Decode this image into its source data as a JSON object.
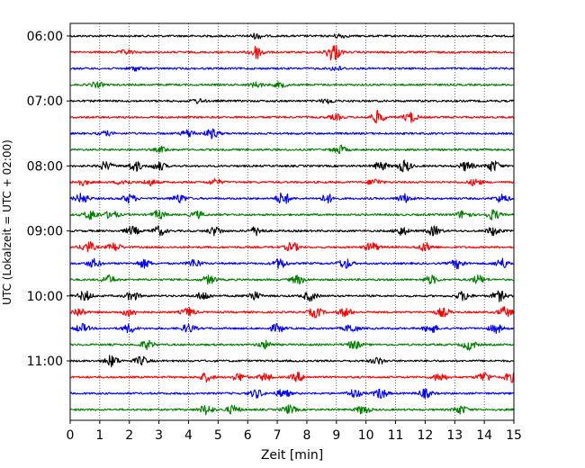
{
  "chart_data": {
    "type": "line",
    "title": "",
    "xlabel": "Zeit  [min]",
    "ylabel": "UTC (Lokalzeit = UTC + 02:00)",
    "xlim": [
      0,
      15
    ],
    "x_ticks": [
      "0",
      "1",
      "2",
      "3",
      "4",
      "5",
      "6",
      "7",
      "8",
      "9",
      "10",
      "11",
      "12",
      "13",
      "14",
      "15"
    ],
    "y_ticks": [
      "06:00",
      "07:00",
      "08:00",
      "09:00",
      "10:00",
      "11:00"
    ],
    "grid": "vertical dotted at each minute",
    "trace_interval_min": 15,
    "first_trace": "06:00",
    "color_cycle": [
      "#000000",
      "#ff0000",
      "#0000ff",
      "#008000"
    ],
    "series": [
      {
        "start": "06:00",
        "color": "#000000",
        "bursts": [
          [
            6.3,
            0.6
          ],
          [
            9.1,
            0.5
          ]
        ]
      },
      {
        "start": "06:15",
        "color": "#ff0000",
        "bursts": [
          [
            6.3,
            1.6
          ],
          [
            8.9,
            2.2
          ],
          [
            1.9,
            0.5
          ]
        ]
      },
      {
        "start": "06:30",
        "color": "#0000ff",
        "bursts": [
          [
            2.2,
            0.5
          ],
          [
            9.0,
            0.5
          ]
        ]
      },
      {
        "start": "06:45",
        "color": "#008000",
        "bursts": [
          [
            0.9,
            0.6
          ],
          [
            6.3,
            0.6
          ],
          [
            7.1,
            0.6
          ]
        ]
      },
      {
        "start": "07:00",
        "color": "#000000",
        "bursts": [
          [
            4.3,
            0.5
          ],
          [
            8.7,
            0.5
          ]
        ]
      },
      {
        "start": "07:15",
        "color": "#ff0000",
        "bursts": [
          [
            9.0,
            0.6
          ],
          [
            10.4,
            1.5
          ],
          [
            11.5,
            1.2
          ]
        ]
      },
      {
        "start": "07:30",
        "color": "#0000ff",
        "bursts": [
          [
            4.0,
            0.9
          ],
          [
            4.8,
            1.1
          ],
          [
            1.2,
            0.5
          ]
        ]
      },
      {
        "start": "07:45",
        "color": "#008000",
        "bursts": [
          [
            9.1,
            1.0
          ],
          [
            3.1,
            0.6
          ]
        ]
      },
      {
        "start": "08:00",
        "color": "#000000",
        "bursts": [
          [
            1.2,
            1.0
          ],
          [
            2.2,
            1.2
          ],
          [
            3.0,
            1.0
          ],
          [
            10.5,
            1.0
          ],
          [
            11.3,
            1.4
          ],
          [
            13.4,
            1.1
          ],
          [
            14.3,
            1.3
          ]
        ]
      },
      {
        "start": "08:15",
        "color": "#ff0000",
        "bursts": [
          [
            0.4,
            0.7
          ],
          [
            1.8,
            0.7
          ],
          [
            2.7,
            0.7
          ],
          [
            4.9,
            0.7
          ],
          [
            10.3,
            0.8
          ],
          [
            13.7,
            0.8
          ]
        ]
      },
      {
        "start": "08:30",
        "color": "#0000ff",
        "bursts": [
          [
            0.4,
            1.2
          ],
          [
            2.0,
            1.0
          ],
          [
            3.7,
            1.0
          ],
          [
            7.2,
            1.5
          ],
          [
            8.7,
            1.0
          ],
          [
            11.3,
            1.0
          ],
          [
            14.6,
            1.0
          ]
        ]
      },
      {
        "start": "08:45",
        "color": "#008000",
        "bursts": [
          [
            0.7,
            1.2
          ],
          [
            1.4,
            1.0
          ],
          [
            3.0,
            1.0
          ],
          [
            4.3,
            0.8
          ],
          [
            13.3,
            1.0
          ],
          [
            14.3,
            1.2
          ]
        ]
      },
      {
        "start": "09:00",
        "color": "#000000",
        "bursts": [
          [
            2.1,
            1.0
          ],
          [
            3.0,
            1.1
          ],
          [
            4.9,
            1.0
          ],
          [
            6.3,
            1.0
          ],
          [
            11.2,
            1.0
          ],
          [
            12.3,
            1.1
          ],
          [
            14.3,
            1.0
          ]
        ]
      },
      {
        "start": "09:15",
        "color": "#ff0000",
        "bursts": [
          [
            0.6,
            1.3
          ],
          [
            1.5,
            1.0
          ],
          [
            7.5,
            1.1
          ],
          [
            10.2,
            1.1
          ],
          [
            12.0,
            1.0
          ]
        ]
      },
      {
        "start": "09:30",
        "color": "#0000ff",
        "bursts": [
          [
            0.8,
            1.0
          ],
          [
            2.5,
            1.0
          ],
          [
            4.2,
            1.0
          ],
          [
            7.1,
            1.2
          ],
          [
            9.3,
            1.2
          ],
          [
            13.1,
            1.1
          ],
          [
            14.6,
            1.2
          ]
        ]
      },
      {
        "start": "09:45",
        "color": "#008000",
        "bursts": [
          [
            1.3,
            1.0
          ],
          [
            4.7,
            1.0
          ],
          [
            7.7,
            1.0
          ],
          [
            12.2,
            1.0
          ],
          [
            13.8,
            1.0
          ]
        ]
      },
      {
        "start": "10:00",
        "color": "#000000",
        "bursts": [
          [
            0.5,
            1.2
          ],
          [
            2.1,
            1.0
          ],
          [
            4.5,
            1.0
          ],
          [
            6.2,
            1.0
          ],
          [
            8.1,
            1.1
          ],
          [
            13.3,
            1.1
          ],
          [
            14.5,
            1.2
          ]
        ]
      },
      {
        "start": "10:15",
        "color": "#ff0000",
        "bursts": [
          [
            0.3,
            1.0
          ],
          [
            2.0,
            1.0
          ],
          [
            4.0,
            1.0
          ],
          [
            8.3,
            1.2
          ],
          [
            9.3,
            1.0
          ],
          [
            12.6,
            1.0
          ],
          [
            14.7,
            1.2
          ]
        ]
      },
      {
        "start": "10:30",
        "color": "#0000ff",
        "bursts": [
          [
            0.4,
            1.0
          ],
          [
            2.0,
            1.0
          ],
          [
            4.0,
            1.0
          ],
          [
            7.0,
            1.0
          ],
          [
            9.5,
            1.0
          ],
          [
            12.2,
            1.0
          ],
          [
            14.4,
            1.0
          ]
        ]
      },
      {
        "start": "10:45",
        "color": "#008000",
        "bursts": [
          [
            2.6,
            1.0
          ],
          [
            6.6,
            0.9
          ],
          [
            9.6,
            1.0
          ],
          [
            13.5,
            1.2
          ]
        ]
      },
      {
        "start": "11:00",
        "color": "#000000",
        "bursts": [
          [
            1.4,
            1.3
          ],
          [
            2.4,
            1.0
          ],
          [
            10.4,
            0.8
          ]
        ]
      },
      {
        "start": "11:15",
        "color": "#ff0000",
        "bursts": [
          [
            4.6,
            1.0
          ],
          [
            5.7,
            0.9
          ],
          [
            6.6,
            0.9
          ],
          [
            7.7,
            1.0
          ],
          [
            12.5,
            1.0
          ],
          [
            14.0,
            1.2
          ],
          [
            14.9,
            1.1
          ]
        ]
      },
      {
        "start": "11:30",
        "color": "#0000ff",
        "bursts": [
          [
            6.3,
            1.0
          ],
          [
            7.2,
            1.0
          ],
          [
            9.6,
            1.0
          ],
          [
            10.5,
            1.2
          ],
          [
            12.0,
            1.0
          ]
        ]
      },
      {
        "start": "11:45",
        "color": "#008000",
        "bursts": [
          [
            4.6,
            1.2
          ],
          [
            5.5,
            1.0
          ],
          [
            7.4,
            1.0
          ],
          [
            9.9,
            1.0
          ],
          [
            13.2,
            1.0
          ]
        ]
      }
    ]
  }
}
